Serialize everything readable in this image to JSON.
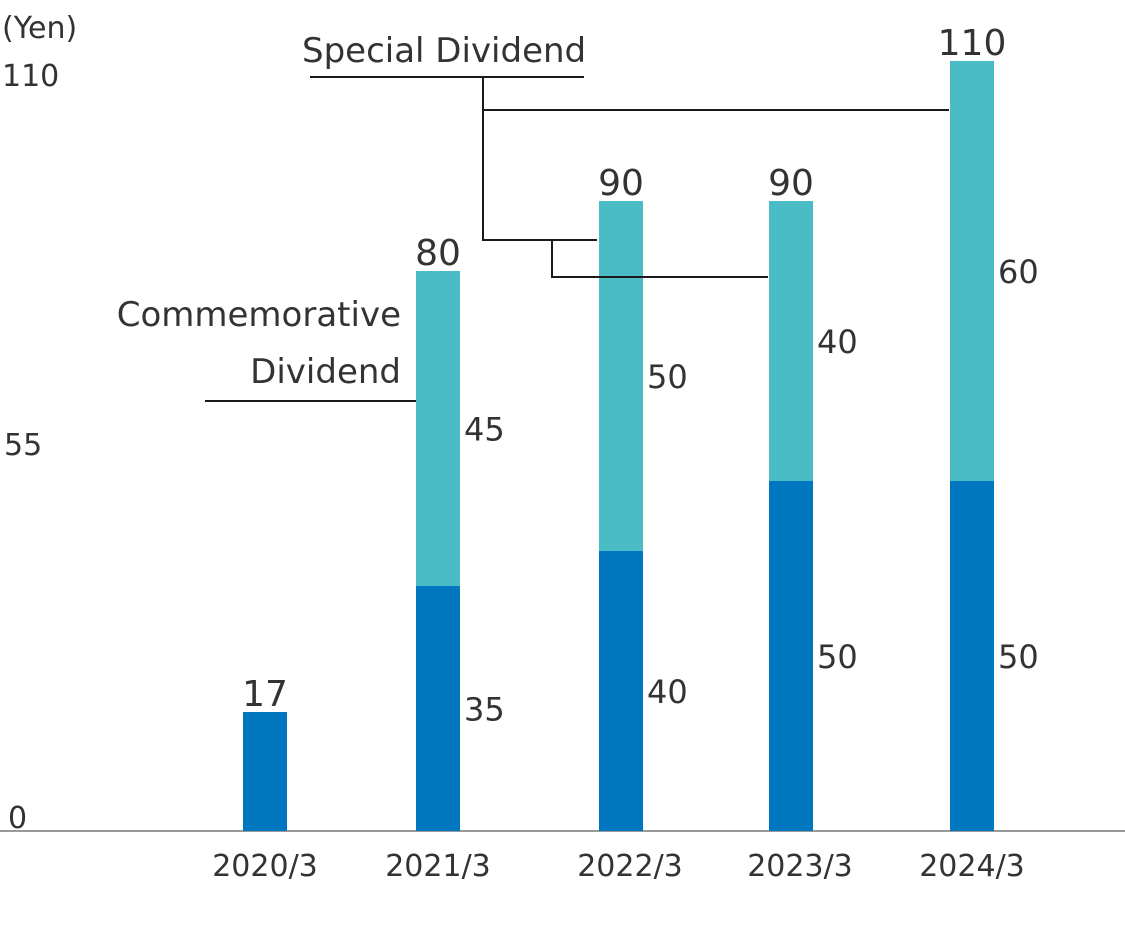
{
  "chart_data": {
    "type": "bar",
    "stacked": true,
    "y_unit": "(Yen)",
    "y_ticks": [
      "110",
      "55",
      "0"
    ],
    "ylim": [
      0,
      110
    ],
    "categories": [
      "2020/3",
      "2021/3",
      "2022/3",
      "2023/3",
      "2024/3"
    ],
    "totals": [
      "17",
      "80",
      "90",
      "90",
      "110"
    ],
    "series": [
      {
        "key": "base",
        "values": [
          17,
          35,
          40,
          50,
          50
        ],
        "labels": [
          "",
          "35",
          "40",
          "50",
          "50"
        ],
        "color": "#0077bf"
      },
      {
        "key": "extra",
        "values": [
          0,
          45,
          50,
          40,
          60
        ],
        "labels": [
          "",
          "45",
          "50",
          "40",
          "60"
        ],
        "color": "#49bcc6"
      }
    ],
    "annotations": {
      "special": "Special Dividend",
      "commemorative_line1": "Commemorative",
      "commemorative_line2": "Dividend"
    },
    "grid": false,
    "legend": "none"
  }
}
